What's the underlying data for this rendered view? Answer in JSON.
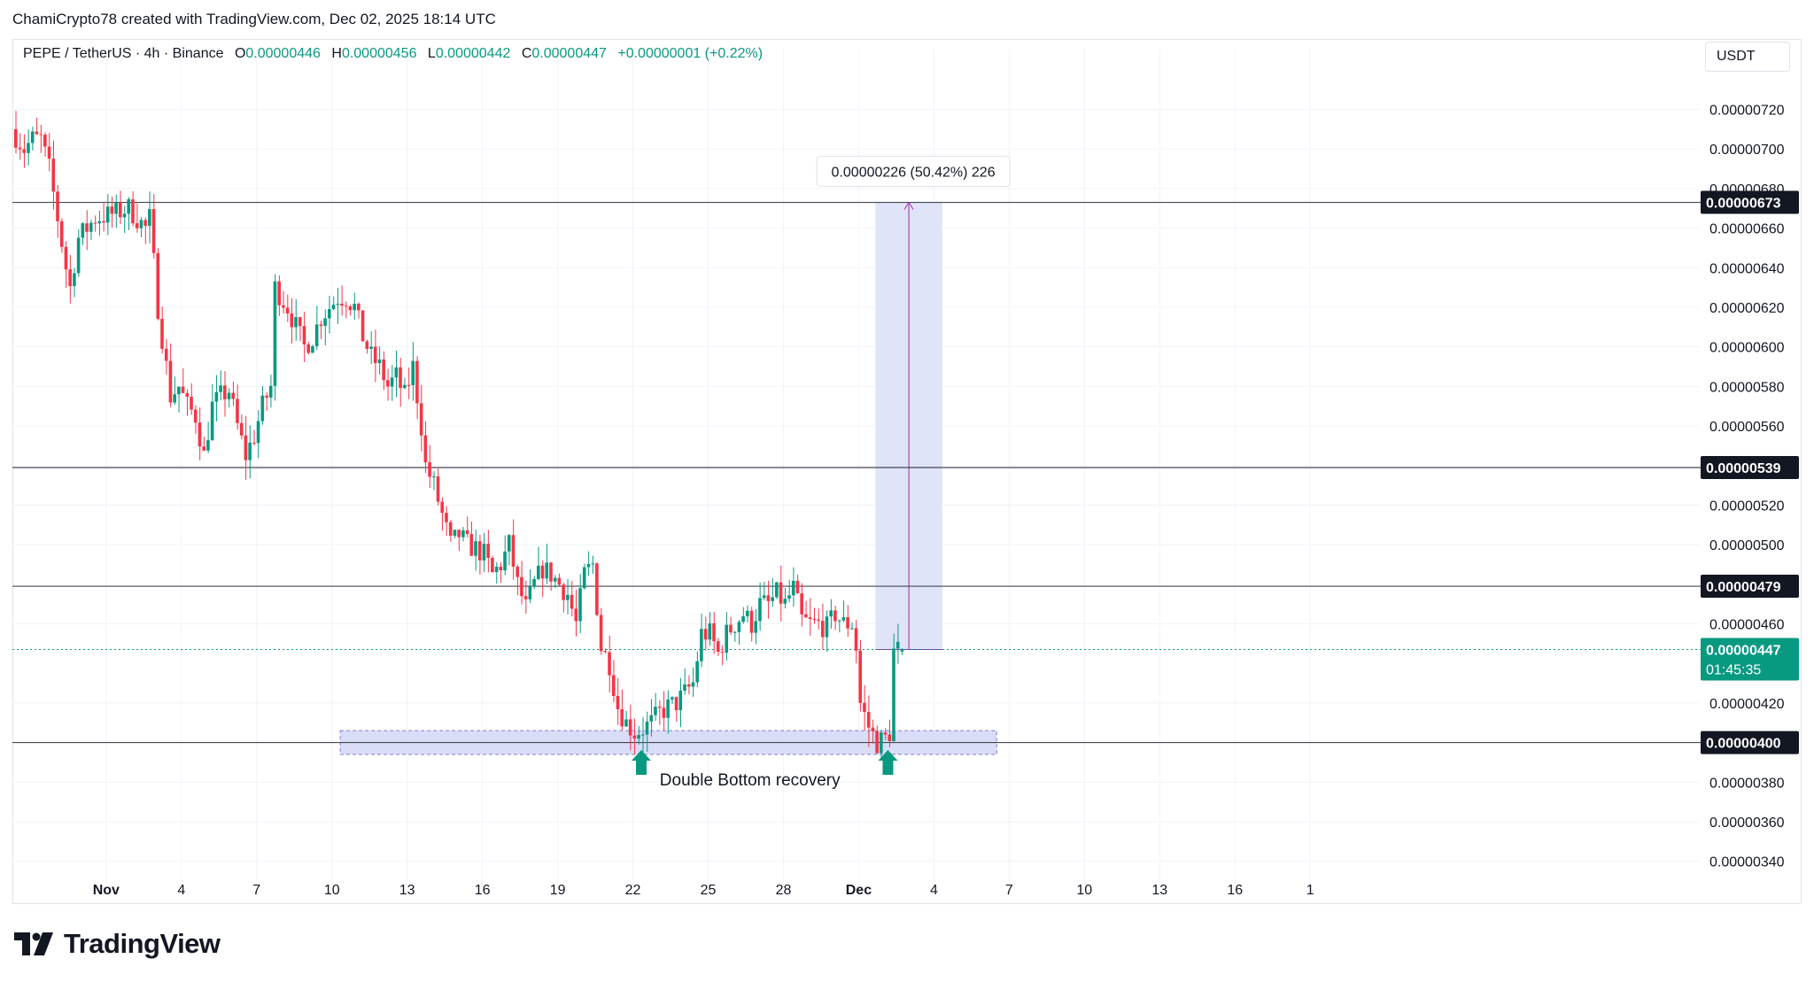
{
  "header": {
    "attribution": "ChamiCrypto78 created with TradingView.com, Dec 02, 2025 18:14 UTC"
  },
  "legend": {
    "symbol": "PEPE / TetherUS · 4h · Binance",
    "open_label": "O",
    "open": "0.00000446",
    "high_label": "H",
    "high": "0.00000456",
    "low_label": "L",
    "low": "0.00000442",
    "close_label": "C",
    "close": "0.00000447",
    "change": "+0.00000001 (+0.22%)"
  },
  "currency": "USDT",
  "footer": {
    "brand": "TradingView"
  },
  "colors": {
    "up": "#089981",
    "down": "#f23645",
    "zone": "#d1d4f5",
    "zone_border": "#7b7fd8",
    "measure_line": "#9c27b0",
    "measure_fill": "#dde1f7"
  },
  "chart_data": {
    "type": "candlestick",
    "ylim": [
      3.3e-06,
      7.35e-06
    ],
    "y_ticks": [
      "0.00000720",
      "0.00000700",
      "0.00000680",
      "0.00000660",
      "0.00000640",
      "0.00000620",
      "0.00000600",
      "0.00000580",
      "0.00000560",
      "0.00000520",
      "0.00000500",
      "0.00000460",
      "0.00000420",
      "0.00000380",
      "0.00000360",
      "0.00000340"
    ],
    "x_ticks": [
      {
        "label": "Nov",
        "bar": 22,
        "bold": true
      },
      {
        "label": "4",
        "bar": 40
      },
      {
        "label": "7",
        "bar": 58
      },
      {
        "label": "10",
        "bar": 76
      },
      {
        "label": "13",
        "bar": 94
      },
      {
        "label": "16",
        "bar": 112
      },
      {
        "label": "19",
        "bar": 130
      },
      {
        "label": "22",
        "bar": 148
      },
      {
        "label": "25",
        "bar": 166
      },
      {
        "label": "28",
        "bar": 184
      },
      {
        "label": "Dec",
        "bar": 202,
        "bold": true
      },
      {
        "label": "4",
        "bar": 220
      },
      {
        "label": "7",
        "bar": 238
      },
      {
        "label": "10",
        "bar": 256
      },
      {
        "label": "13",
        "bar": 274
      },
      {
        "label": "16",
        "bar": 292
      },
      {
        "label": "1",
        "bar": 310
      }
    ],
    "levels": [
      {
        "price": 6.73e-06,
        "label": "0.00000673"
      },
      {
        "price": 5.39e-06,
        "label": "0.00000539"
      },
      {
        "price": 4.79e-06,
        "label": "0.00000479"
      },
      {
        "price": 4e-06,
        "label": "0.00000400"
      }
    ],
    "current_price": {
      "price": 4.47e-06,
      "label": "0.00000447",
      "countdown": "01:45:35"
    },
    "support_zone": {
      "from_bar": 78,
      "to_bar": 235,
      "low": 3.94e-06,
      "high": 4.06e-06
    },
    "measure": {
      "from_bar": 206,
      "to_bar": 222,
      "from_price": 4.47e-06,
      "to_price": 6.73e-06,
      "label": "0.00000226 (50.42%) 226"
    },
    "annotation": {
      "text": "Double Bottom recovery",
      "bar": 176,
      "price": 3.81e-06
    },
    "arrows": [
      {
        "bar": 150,
        "price": 3.98e-06
      },
      {
        "bar": 209,
        "price": 3.98e-06
      }
    ],
    "keypoints": [
      [
        0,
        7.1e-06
      ],
      [
        3,
        7e-06
      ],
      [
        5,
        7.05e-06
      ],
      [
        7,
        7.05e-06
      ],
      [
        9,
        6.9e-06
      ],
      [
        11,
        6.65e-06
      ],
      [
        13,
        6.4e-06
      ],
      [
        14,
        6.3e-06
      ],
      [
        16,
        6.55e-06
      ],
      [
        20,
        6.65e-06
      ],
      [
        24,
        6.67e-06
      ],
      [
        28,
        6.7e-06
      ],
      [
        32,
        6.6e-06
      ],
      [
        33,
        6.65e-06
      ],
      [
        35,
        6.2e-06
      ],
      [
        36,
        6.05e-06
      ],
      [
        37,
        5.9e-06
      ],
      [
        38,
        5.75e-06
      ],
      [
        40,
        5.8e-06
      ],
      [
        42,
        5.7e-06
      ],
      [
        44,
        5.65e-06
      ],
      [
        46,
        5.45e-06
      ],
      [
        48,
        5.7e-06
      ],
      [
        50,
        5.75e-06
      ],
      [
        52,
        5.78e-06
      ],
      [
        54,
        5.6e-06
      ],
      [
        56,
        5.45e-06
      ],
      [
        58,
        5.55e-06
      ],
      [
        60,
        5.7e-06
      ],
      [
        62,
        5.8e-06
      ],
      [
        63,
        6.3e-06
      ],
      [
        66,
        6.2e-06
      ],
      [
        68,
        6.1e-06
      ],
      [
        70,
        6e-06
      ],
      [
        72,
        6.05e-06
      ],
      [
        74,
        6.15e-06
      ],
      [
        76,
        6.2e-06
      ],
      [
        78,
        6.25e-06
      ],
      [
        80,
        6.25e-06
      ],
      [
        82,
        6.2e-06
      ],
      [
        84,
        6.05e-06
      ],
      [
        86,
        5.95e-06
      ],
      [
        88,
        5.9e-06
      ],
      [
        90,
        5.8e-06
      ],
      [
        92,
        5.85e-06
      ],
      [
        94,
        5.75e-06
      ],
      [
        96,
        5.9e-06
      ],
      [
        98,
        5.6e-06
      ],
      [
        99,
        5.4e-06
      ],
      [
        101,
        5.3e-06
      ],
      [
        103,
        5.15e-06
      ],
      [
        105,
        5e-06
      ],
      [
        107,
        5.05e-06
      ],
      [
        109,
        5e-06
      ],
      [
        111,
        4.98e-06
      ],
      [
        113,
        4.95e-06
      ],
      [
        115,
        4.85e-06
      ],
      [
        117,
        4.9e-06
      ],
      [
        119,
        5e-06
      ],
      [
        121,
        4.8e-06
      ],
      [
        123,
        4.68e-06
      ],
      [
        125,
        4.8e-06
      ],
      [
        127,
        4.88e-06
      ],
      [
        129,
        4.85e-06
      ],
      [
        131,
        4.8e-06
      ],
      [
        133,
        4.75e-06
      ],
      [
        135,
        4.6e-06
      ],
      [
        137,
        4.85e-06
      ],
      [
        139,
        4.9e-06
      ],
      [
        141,
        4.48e-06
      ],
      [
        143,
        4.4e-06
      ],
      [
        145,
        4.18e-06
      ],
      [
        147,
        4.1e-06
      ],
      [
        149,
        4.05e-06
      ],
      [
        151,
        4.07e-06
      ],
      [
        153,
        4.1e-06
      ],
      [
        155,
        4.15e-06
      ],
      [
        157,
        4.18e-06
      ],
      [
        159,
        4.2e-06
      ],
      [
        161,
        4.25e-06
      ],
      [
        163,
        4.3e-06
      ],
      [
        165,
        4.55e-06
      ],
      [
        167,
        4.55e-06
      ],
      [
        169,
        4.45e-06
      ],
      [
        171,
        4.55e-06
      ],
      [
        173,
        4.6e-06
      ],
      [
        175,
        4.65e-06
      ],
      [
        177,
        4.6e-06
      ],
      [
        179,
        4.7e-06
      ],
      [
        181,
        4.7e-06
      ],
      [
        183,
        4.75e-06
      ],
      [
        185,
        4.7e-06
      ],
      [
        187,
        4.78e-06
      ],
      [
        189,
        4.62e-06
      ],
      [
        191,
        4.6e-06
      ],
      [
        193,
        4.6e-06
      ],
      [
        195,
        4.58e-06
      ],
      [
        197,
        4.65e-06
      ],
      [
        199,
        4.6e-06
      ],
      [
        201,
        4.6e-06
      ],
      [
        202,
        4.48e-06
      ],
      [
        203,
        4.2e-06
      ],
      [
        205,
        4.08e-06
      ],
      [
        207,
        4e-06
      ],
      [
        209,
        4.02e-06
      ],
      [
        210,
        4.05e-06
      ],
      [
        211,
        4.46e-06
      ],
      [
        212,
        4.47e-06
      ]
    ]
  }
}
